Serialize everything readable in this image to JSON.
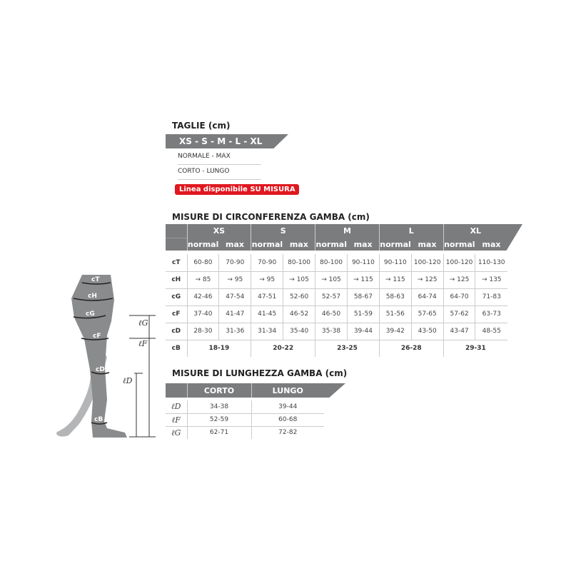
{
  "sizes": {
    "title": "TAGLIE (cm)",
    "band": "XS - S - M - L - XL",
    "options": [
      "NORMALE - MAX",
      "CORTO - LUNGO"
    ],
    "badge": "Linea disponibile SU MISURA",
    "badge_color": "#e0181f"
  },
  "circ": {
    "title": "MISURE DI CIRCONFERENZA GAMBA (cm)",
    "sizes": [
      "XS",
      "S",
      "M",
      "L",
      "XL"
    ],
    "sub": [
      "normal",
      "max"
    ],
    "rows": [
      {
        "label": "cT",
        "values": [
          "60-80",
          "70-90",
          "70-90",
          "80-100",
          "80-100",
          "90-110",
          "90-110",
          "100-120",
          "100-120",
          "110-130"
        ]
      },
      {
        "label": "cH",
        "values": [
          "→ 85",
          "→ 95",
          "→ 95",
          "→ 105",
          "→ 105",
          "→ 115",
          "→ 115",
          "→ 125",
          "→ 125",
          "→ 135"
        ]
      },
      {
        "label": "cG",
        "values": [
          "42-46",
          "47-54",
          "47-51",
          "52-60",
          "52-57",
          "58-67",
          "58-63",
          "64-74",
          "64-70",
          "71-83"
        ]
      },
      {
        "label": "cF",
        "values": [
          "37-40",
          "41-47",
          "41-45",
          "46-52",
          "46-50",
          "51-59",
          "51-56",
          "57-65",
          "57-62",
          "63-73"
        ]
      },
      {
        "label": "cD",
        "values": [
          "28-30",
          "31-36",
          "31-34",
          "35-40",
          "35-38",
          "39-44",
          "39-42",
          "43-50",
          "43-47",
          "48-55"
        ]
      }
    ],
    "cB": {
      "label": "cB",
      "values": [
        "18-19",
        "20-22",
        "23-25",
        "26-28",
        "29-31"
      ]
    }
  },
  "length": {
    "title": "MISURE DI LUNGHEZZA GAMBA (cm)",
    "cols": [
      "CORTO",
      "LUNGO"
    ],
    "rows": [
      {
        "label": "ℓD",
        "values": [
          "34-38",
          "39-44"
        ]
      },
      {
        "label": "ℓF",
        "values": [
          "52-59",
          "60-68"
        ]
      },
      {
        "label": "ℓG",
        "values": [
          "62-71",
          "72-82"
        ]
      }
    ]
  },
  "figure": {
    "labels": [
      "cT",
      "cH",
      "cG",
      "cF",
      "cD",
      "cB"
    ],
    "lengths": [
      "ℓG",
      "ℓF",
      "ℓD"
    ],
    "leg_color": "#8a8b8d",
    "back_leg_color": "#b4b5b7"
  }
}
